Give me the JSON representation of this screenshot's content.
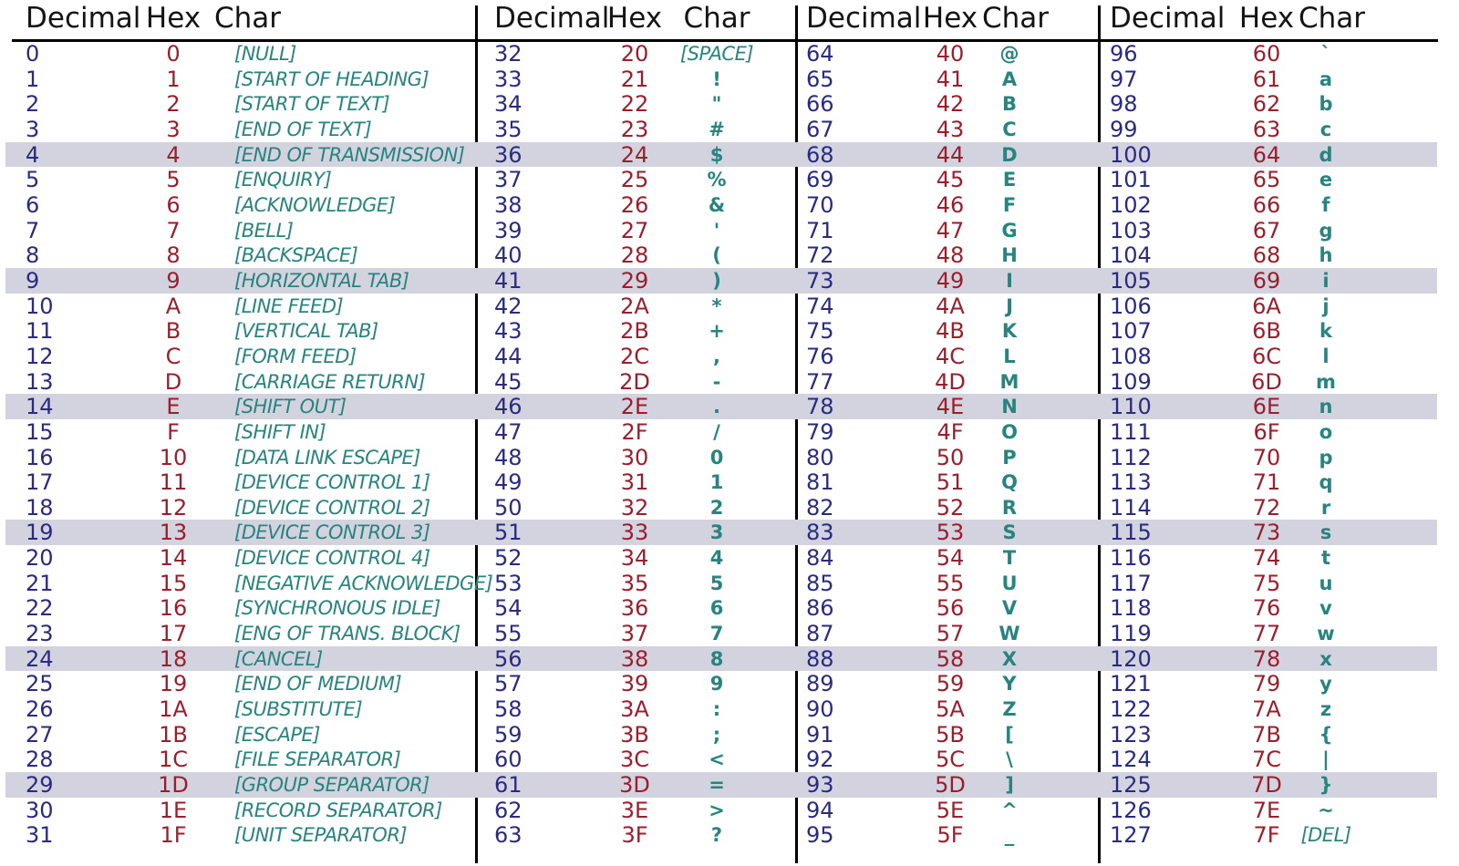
{
  "colors": {
    "decimal": "#2a2a82",
    "hex": "#9b1e2d",
    "char": "#27847e",
    "highlight": "#d3d3df",
    "header": "#141414",
    "line": "#000000"
  },
  "chart_data": {
    "type": "table",
    "title": "ASCII character code table (0-127)",
    "column_headers": [
      "Decimal",
      "Hex",
      "Char"
    ],
    "group_ranges": [
      "0-31",
      "32-63",
      "64-95",
      "96-127"
    ],
    "highlight_row_indices": [
      4,
      9,
      14,
      19,
      24,
      29
    ],
    "groups": [
      [
        [
          "0",
          "0",
          "[NULL]"
        ],
        [
          "1",
          "1",
          "[START OF HEADING]"
        ],
        [
          "2",
          "2",
          "[START OF TEXT]"
        ],
        [
          "3",
          "3",
          "[END OF TEXT]"
        ],
        [
          "4",
          "4",
          "[END OF TRANSMISSION]"
        ],
        [
          "5",
          "5",
          "[ENQUIRY]"
        ],
        [
          "6",
          "6",
          "[ACKNOWLEDGE]"
        ],
        [
          "7",
          "7",
          "[BELL]"
        ],
        [
          "8",
          "8",
          "[BACKSPACE]"
        ],
        [
          "9",
          "9",
          "[HORIZONTAL TAB]"
        ],
        [
          "10",
          "A",
          "[LINE FEED]"
        ],
        [
          "11",
          "B",
          "[VERTICAL TAB]"
        ],
        [
          "12",
          "C",
          "[FORM FEED]"
        ],
        [
          "13",
          "D",
          "[CARRIAGE RETURN]"
        ],
        [
          "14",
          "E",
          "[SHIFT OUT]"
        ],
        [
          "15",
          "F",
          "[SHIFT IN]"
        ],
        [
          "16",
          "10",
          "[DATA LINK ESCAPE]"
        ],
        [
          "17",
          "11",
          "[DEVICE CONTROL 1]"
        ],
        [
          "18",
          "12",
          "[DEVICE CONTROL 2]"
        ],
        [
          "19",
          "13",
          "[DEVICE CONTROL 3]"
        ],
        [
          "20",
          "14",
          "[DEVICE CONTROL 4]"
        ],
        [
          "21",
          "15",
          "[NEGATIVE ACKNOWLEDGE]"
        ],
        [
          "22",
          "16",
          "[SYNCHRONOUS IDLE]"
        ],
        [
          "23",
          "17",
          "[ENG OF TRANS. BLOCK]"
        ],
        [
          "24",
          "18",
          "[CANCEL]"
        ],
        [
          "25",
          "19",
          "[END OF MEDIUM]"
        ],
        [
          "26",
          "1A",
          "[SUBSTITUTE]"
        ],
        [
          "27",
          "1B",
          "[ESCAPE]"
        ],
        [
          "28",
          "1C",
          "[FILE SEPARATOR]"
        ],
        [
          "29",
          "1D",
          "[GROUP SEPARATOR]"
        ],
        [
          "30",
          "1E",
          "[RECORD SEPARATOR]"
        ],
        [
          "31",
          "1F",
          "[UNIT SEPARATOR]"
        ]
      ],
      [
        [
          "32",
          "20",
          "[SPACE]"
        ],
        [
          "33",
          "21",
          "!"
        ],
        [
          "34",
          "22",
          "\""
        ],
        [
          "35",
          "23",
          "#"
        ],
        [
          "36",
          "24",
          "$"
        ],
        [
          "37",
          "25",
          "%"
        ],
        [
          "38",
          "26",
          "&"
        ],
        [
          "39",
          "27",
          "'"
        ],
        [
          "40",
          "28",
          "("
        ],
        [
          "41",
          "29",
          ")"
        ],
        [
          "42",
          "2A",
          "*"
        ],
        [
          "43",
          "2B",
          "+"
        ],
        [
          "44",
          "2C",
          ","
        ],
        [
          "45",
          "2D",
          "-"
        ],
        [
          "46",
          "2E",
          "."
        ],
        [
          "47",
          "2F",
          "/"
        ],
        [
          "48",
          "30",
          "0"
        ],
        [
          "49",
          "31",
          "1"
        ],
        [
          "50",
          "32",
          "2"
        ],
        [
          "51",
          "33",
          "3"
        ],
        [
          "52",
          "34",
          "4"
        ],
        [
          "53",
          "35",
          "5"
        ],
        [
          "54",
          "36",
          "6"
        ],
        [
          "55",
          "37",
          "7"
        ],
        [
          "56",
          "38",
          "8"
        ],
        [
          "57",
          "39",
          "9"
        ],
        [
          "58",
          "3A",
          ":"
        ],
        [
          "59",
          "3B",
          ";"
        ],
        [
          "60",
          "3C",
          "<"
        ],
        [
          "61",
          "3D",
          "="
        ],
        [
          "62",
          "3E",
          ">"
        ],
        [
          "63",
          "3F",
          "?"
        ]
      ],
      [
        [
          "64",
          "40",
          "@"
        ],
        [
          "65",
          "41",
          "A"
        ],
        [
          "66",
          "42",
          "B"
        ],
        [
          "67",
          "43",
          "C"
        ],
        [
          "68",
          "44",
          "D"
        ],
        [
          "69",
          "45",
          "E"
        ],
        [
          "70",
          "46",
          "F"
        ],
        [
          "71",
          "47",
          "G"
        ],
        [
          "72",
          "48",
          "H"
        ],
        [
          "73",
          "49",
          "I"
        ],
        [
          "74",
          "4A",
          "J"
        ],
        [
          "75",
          "4B",
          "K"
        ],
        [
          "76",
          "4C",
          "L"
        ],
        [
          "77",
          "4D",
          "M"
        ],
        [
          "78",
          "4E",
          "N"
        ],
        [
          "79",
          "4F",
          "O"
        ],
        [
          "80",
          "50",
          "P"
        ],
        [
          "81",
          "51",
          "Q"
        ],
        [
          "82",
          "52",
          "R"
        ],
        [
          "83",
          "53",
          "S"
        ],
        [
          "84",
          "54",
          "T"
        ],
        [
          "85",
          "55",
          "U"
        ],
        [
          "86",
          "56",
          "V"
        ],
        [
          "87",
          "57",
          "W"
        ],
        [
          "88",
          "58",
          "X"
        ],
        [
          "89",
          "59",
          "Y"
        ],
        [
          "90",
          "5A",
          "Z"
        ],
        [
          "91",
          "5B",
          "["
        ],
        [
          "92",
          "5C",
          "\\"
        ],
        [
          "93",
          "5D",
          "]"
        ],
        [
          "94",
          "5E",
          "^"
        ],
        [
          "95",
          "5F",
          "_"
        ]
      ],
      [
        [
          "96",
          "60",
          "`"
        ],
        [
          "97",
          "61",
          "a"
        ],
        [
          "98",
          "62",
          "b"
        ],
        [
          "99",
          "63",
          "c"
        ],
        [
          "100",
          "64",
          "d"
        ],
        [
          "101",
          "65",
          "e"
        ],
        [
          "102",
          "66",
          "f"
        ],
        [
          "103",
          "67",
          "g"
        ],
        [
          "104",
          "68",
          "h"
        ],
        [
          "105",
          "69",
          "i"
        ],
        [
          "106",
          "6A",
          "j"
        ],
        [
          "107",
          "6B",
          "k"
        ],
        [
          "108",
          "6C",
          "l"
        ],
        [
          "109",
          "6D",
          "m"
        ],
        [
          "110",
          "6E",
          "n"
        ],
        [
          "111",
          "6F",
          "o"
        ],
        [
          "112",
          "70",
          "p"
        ],
        [
          "113",
          "71",
          "q"
        ],
        [
          "114",
          "72",
          "r"
        ],
        [
          "115",
          "73",
          "s"
        ],
        [
          "116",
          "74",
          "t"
        ],
        [
          "117",
          "75",
          "u"
        ],
        [
          "118",
          "76",
          "v"
        ],
        [
          "119",
          "77",
          "w"
        ],
        [
          "120",
          "78",
          "x"
        ],
        [
          "121",
          "79",
          "y"
        ],
        [
          "122",
          "7A",
          "z"
        ],
        [
          "123",
          "7B",
          "{"
        ],
        [
          "124",
          "7C",
          "|"
        ],
        [
          "125",
          "7D",
          "}"
        ],
        [
          "126",
          "7E",
          "~"
        ],
        [
          "127",
          "7F",
          "[DEL]"
        ]
      ]
    ]
  }
}
